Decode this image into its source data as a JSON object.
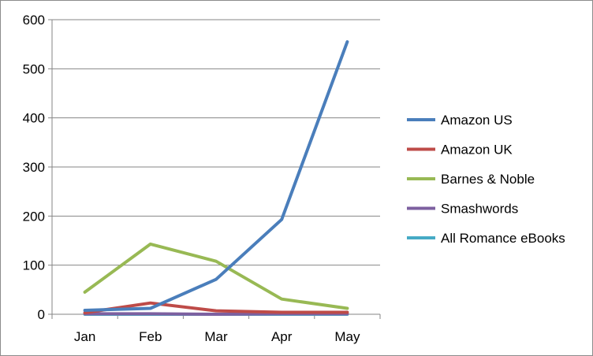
{
  "chart_data": {
    "type": "line",
    "categories": [
      "Jan",
      "Feb",
      "Mar",
      "Apr",
      "May"
    ],
    "ylim": [
      0,
      600
    ],
    "yticks": [
      0,
      100,
      200,
      300,
      400,
      500,
      600
    ],
    "grid": true,
    "legend_position": "right",
    "series": [
      {
        "name": "Amazon US",
        "color": "#4a7ebb",
        "values": [
          8,
          12,
          71,
          193,
          555
        ]
      },
      {
        "name": "Amazon UK",
        "color": "#be4b48",
        "values": [
          3,
          23,
          7,
          4,
          4
        ]
      },
      {
        "name": "Barnes & Noble",
        "color": "#98b954",
        "values": [
          45,
          143,
          108,
          31,
          12
        ]
      },
      {
        "name": "Smashwords",
        "color": "#7d60a0",
        "values": [
          1,
          1,
          0,
          1,
          1
        ]
      },
      {
        "name": "All Romance eBooks",
        "color": "#46aac5",
        "values": [
          0,
          0,
          0,
          0,
          0
        ]
      }
    ]
  }
}
